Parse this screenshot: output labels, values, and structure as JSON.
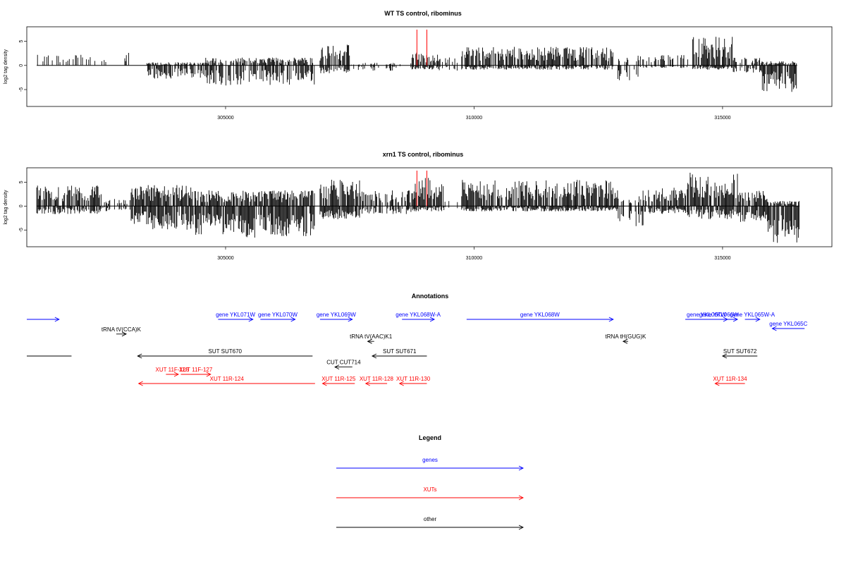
{
  "panels": [
    {
      "title": "WT TS control, ribominus",
      "ylabel": "log2 tag density",
      "ylim": [
        -8.5,
        8
      ],
      "yticks": [
        -5,
        0,
        5
      ],
      "xlim": [
        301000,
        317200
      ],
      "xticks": [
        305000,
        310000,
        315000
      ],
      "red_marks": [
        308850,
        309050
      ],
      "signal_blocks": [
        {
          "x0": 301200,
          "x1": 302600,
          "pos": 2.0,
          "neg": 0,
          "density": 0.35
        },
        {
          "x0": 302800,
          "x1": 303100,
          "pos": 2.5,
          "neg": 0,
          "density": 0.3
        },
        {
          "x0": 303400,
          "x1": 304600,
          "pos": 0.6,
          "neg": -2.5,
          "density": 0.8
        },
        {
          "x0": 304600,
          "x1": 306800,
          "pos": 1.5,
          "neg": -3.8,
          "density": 0.8
        },
        {
          "x0": 306900,
          "x1": 307500,
          "pos": 4.0,
          "neg": -1.5,
          "density": 0.9
        },
        {
          "x0": 307500,
          "x1": 308400,
          "pos": 0.5,
          "neg": -1.0,
          "density": 0.3
        },
        {
          "x0": 308400,
          "x1": 308750,
          "pos": 0.5,
          "neg": -0.5,
          "density": 0.3
        },
        {
          "x0": 308750,
          "x1": 309300,
          "pos": 2.5,
          "neg": -0.8,
          "density": 0.9
        },
        {
          "x0": 309300,
          "x1": 309700,
          "pos": 1.5,
          "neg": -1.0,
          "density": 0.4
        },
        {
          "x0": 309750,
          "x1": 312800,
          "pos": 3.5,
          "neg": -0.8,
          "density": 0.9
        },
        {
          "x0": 312800,
          "x1": 313300,
          "pos": 1.5,
          "neg": -3.0,
          "density": 0.4
        },
        {
          "x0": 313300,
          "x1": 314300,
          "pos": 2.0,
          "neg": -0.5,
          "density": 0.6
        },
        {
          "x0": 314400,
          "x1": 315200,
          "pos": 5.5,
          "neg": -0.8,
          "density": 1.0
        },
        {
          "x0": 315200,
          "x1": 315800,
          "pos": 1.5,
          "neg": -1.5,
          "density": 0.5
        },
        {
          "x0": 315800,
          "x1": 316500,
          "pos": 0.8,
          "neg": -5.0,
          "density": 1.0
        }
      ]
    },
    {
      "title": "xrn1 TS control, ribominus",
      "ylabel": "log2 tag density",
      "ylim": [
        -8.5,
        8
      ],
      "yticks": [
        -5,
        0,
        5
      ],
      "xlim": [
        301000,
        317200
      ],
      "xticks": [
        305000,
        310000,
        315000
      ],
      "red_marks": [
        308850,
        309050
      ],
      "signal_blocks": [
        {
          "x0": 301200,
          "x1": 302500,
          "pos": 4.0,
          "neg": -1.5,
          "density": 0.9
        },
        {
          "x0": 302500,
          "x1": 303100,
          "pos": 1.5,
          "neg": -1.0,
          "density": 0.4
        },
        {
          "x0": 303100,
          "x1": 304400,
          "pos": 4.0,
          "neg": -4.5,
          "density": 1.0
        },
        {
          "x0": 304400,
          "x1": 306800,
          "pos": 3.0,
          "neg": -6.0,
          "density": 1.0
        },
        {
          "x0": 306900,
          "x1": 307700,
          "pos": 5.0,
          "neg": -2.5,
          "density": 1.0
        },
        {
          "x0": 307700,
          "x1": 308800,
          "pos": 3.0,
          "neg": -1.5,
          "density": 0.7
        },
        {
          "x0": 308800,
          "x1": 309400,
          "pos": 5.5,
          "neg": -1.0,
          "density": 1.0
        },
        {
          "x0": 309400,
          "x1": 309700,
          "pos": 1.0,
          "neg": -0.5,
          "density": 0.3
        },
        {
          "x0": 309750,
          "x1": 312900,
          "pos": 5.0,
          "neg": -1.0,
          "density": 1.0
        },
        {
          "x0": 312900,
          "x1": 313400,
          "pos": 2.0,
          "neg": -4.0,
          "density": 0.6
        },
        {
          "x0": 313400,
          "x1": 314300,
          "pos": 3.5,
          "neg": -1.5,
          "density": 0.9
        },
        {
          "x0": 314300,
          "x1": 315300,
          "pos": 6.5,
          "neg": -2.5,
          "density": 1.0
        },
        {
          "x0": 315300,
          "x1": 315900,
          "pos": 3.0,
          "neg": -3.0,
          "density": 0.8
        },
        {
          "x0": 315900,
          "x1": 316550,
          "pos": 1.0,
          "neg": -7.0,
          "density": 1.0
        }
      ]
    }
  ],
  "annotations": {
    "title": "Annotations",
    "items": [
      {
        "label": "",
        "color": "#0000ff",
        "x0": 301000,
        "x1": 301650,
        "row": 0,
        "dir": 1
      },
      {
        "label": "gene YKL071W",
        "color": "#0000ff",
        "x0": 304850,
        "x1": 305550,
        "row": 0,
        "dir": 1
      },
      {
        "label": "gene YKL070W",
        "color": "#0000ff",
        "x0": 305700,
        "x1": 306400,
        "row": 0,
        "dir": 1
      },
      {
        "label": "gene YKL069W",
        "color": "#0000ff",
        "x0": 306900,
        "x1": 307550,
        "row": 0,
        "dir": 1
      },
      {
        "label": "gene YKL068W-A",
        "color": "#0000ff",
        "x0": 308550,
        "x1": 309200,
        "row": 0,
        "dir": 1
      },
      {
        "label": "gene YKL068W",
        "color": "#0000ff",
        "x0": 309850,
        "x1": 312800,
        "row": 0,
        "dir": 1
      },
      {
        "label": "gene YKL067W",
        "color": "#0000ff",
        "x0": 314250,
        "x1": 315100,
        "row": 0,
        "dir": 1
      },
      {
        "label": "gene YKL066W",
        "color": "#0000ff",
        "x0": 314550,
        "x1": 315300,
        "row": 0,
        "dir": 1
      },
      {
        "label": "gene YKL065W-A",
        "color": "#0000ff",
        "x0": 315450,
        "x1": 315750,
        "row": 0,
        "dir": 1
      },
      {
        "label": "gene YKL065C",
        "color": "#0000ff",
        "x0": 316000,
        "x1": 316650,
        "row": 1,
        "dir": -1
      },
      {
        "label": "tRNA tV(CCA)K",
        "color": "#000000",
        "x0": 302800,
        "x1": 303000,
        "row": 1.6,
        "dir": 1
      },
      {
        "label": "tRNA tV(AAC)K1",
        "color": "#000000",
        "x0": 307860,
        "x1": 307990,
        "row": 2.4,
        "dir": -1
      },
      {
        "label": "tRNA tH(GUG)K",
        "color": "#000000",
        "x0": 313000,
        "x1": 313100,
        "row": 2.4,
        "dir": -1
      },
      {
        "label": "",
        "color": "#000000",
        "x0": 301000,
        "x1": 301900,
        "row": 4,
        "dir": 0
      },
      {
        "label": "SUT SUT670",
        "color": "#000000",
        "x0": 303230,
        "x1": 306750,
        "row": 4,
        "dir": -1
      },
      {
        "label": "SUT SUT671",
        "color": "#000000",
        "x0": 307950,
        "x1": 309050,
        "row": 4,
        "dir": -1
      },
      {
        "label": "SUT SUT672",
        "color": "#000000",
        "x0": 315000,
        "x1": 315700,
        "row": 4,
        "dir": -1
      },
      {
        "label": "CUT CUT714",
        "color": "#000000",
        "x0": 307200,
        "x1": 307550,
        "row": 5.2,
        "dir": -1
      },
      {
        "label": "XUT 11F-126",
        "color": "#ff0000",
        "x0": 303800,
        "x1": 304050,
        "row": 6.0,
        "dir": 1
      },
      {
        "label": "XUT 11F-127",
        "color": "#ff0000",
        "x0": 304100,
        "x1": 304700,
        "row": 6.0,
        "dir": 1
      },
      {
        "label": "XUT 11R-124",
        "color": "#ff0000",
        "x0": 303250,
        "x1": 306800,
        "row": 7,
        "dir": -1
      },
      {
        "label": "XUT 11R-125",
        "color": "#ff0000",
        "x0": 306950,
        "x1": 307600,
        "row": 7,
        "dir": -1
      },
      {
        "label": "XUT 11R-128",
        "color": "#ff0000",
        "x0": 307820,
        "x1": 308250,
        "row": 7,
        "dir": -1
      },
      {
        "label": "XUT 11R-130",
        "color": "#ff0000",
        "x0": 308500,
        "x1": 309050,
        "row": 7,
        "dir": -1
      },
      {
        "label": "XUT 11R-134",
        "color": "#ff0000",
        "x0": 314850,
        "x1": 315450,
        "row": 7,
        "dir": -1
      }
    ]
  },
  "legend": {
    "title": "Legend",
    "items": [
      {
        "label": "genes",
        "color": "#0000ff"
      },
      {
        "label": "XUTs",
        "color": "#ff0000"
      },
      {
        "label": "other",
        "color": "#000000"
      }
    ]
  }
}
